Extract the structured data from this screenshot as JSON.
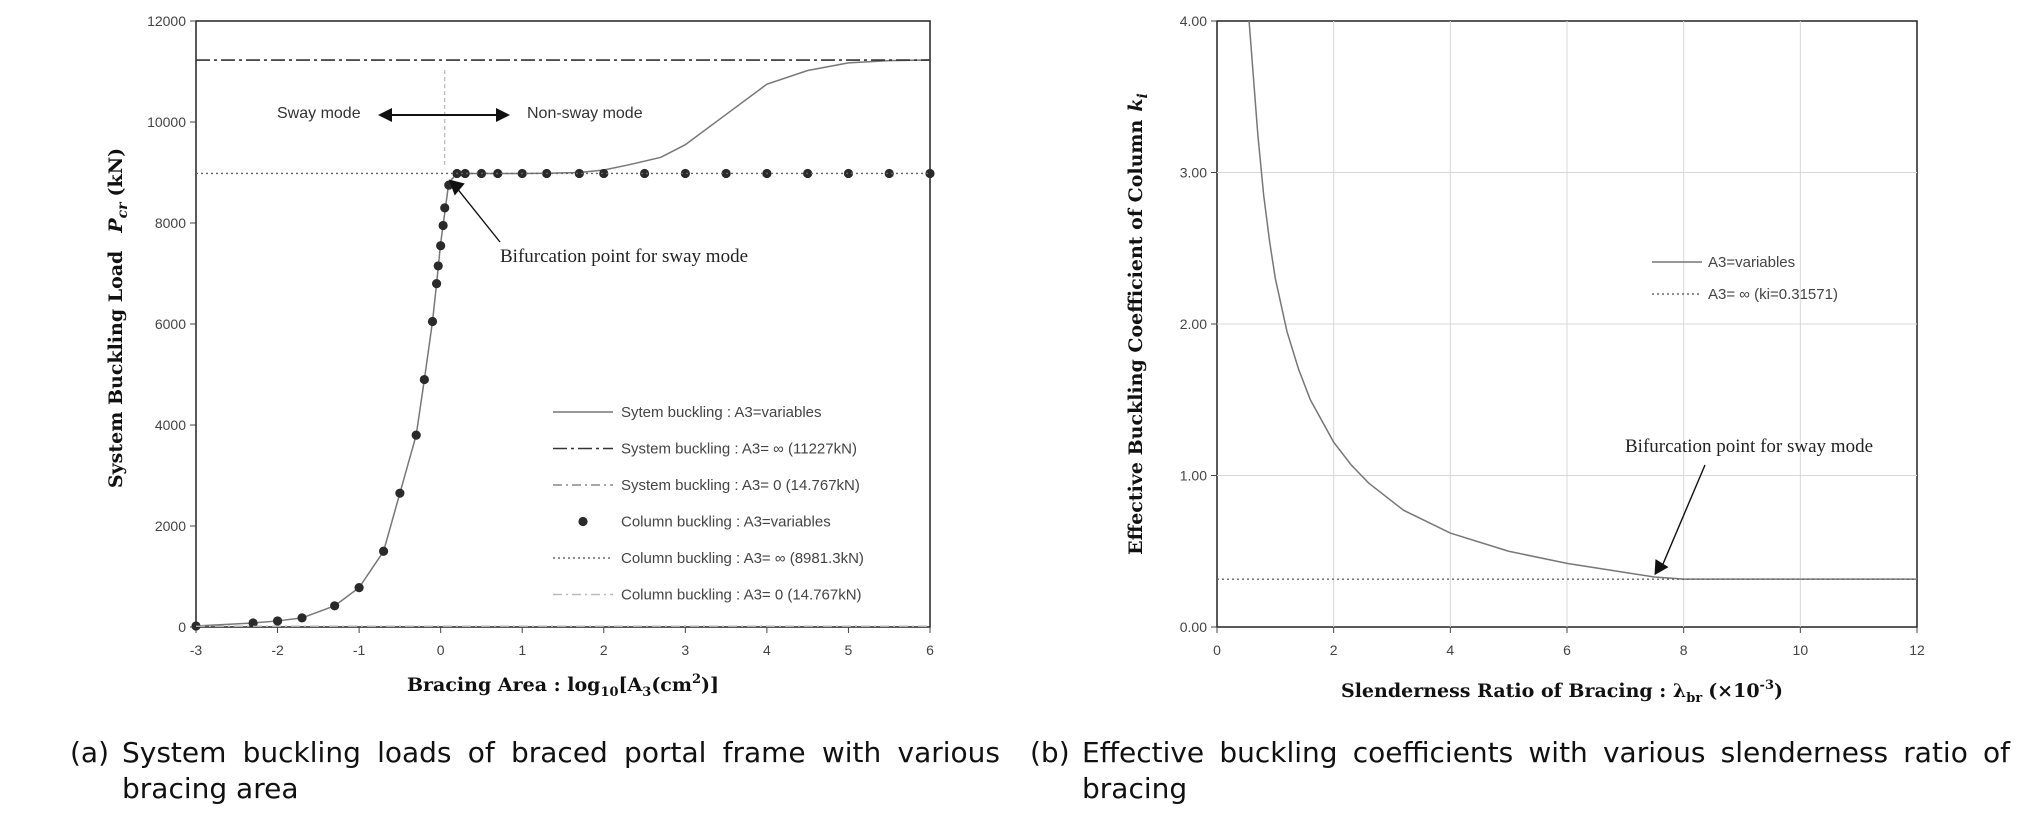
{
  "chart_data": [
    {
      "type": "line",
      "ylabel_main": "System Buckling Load",
      "ylabel_sym": "P",
      "ylabel_sub": "cr",
      "ylabel_unit": "(kN)",
      "xlabel_main": "Bracing Area : log",
      "xlabel_sub": "10",
      "xlabel_mid": "[A",
      "xlabel_sub2": "3",
      "xlabel_unit": "(cm",
      "xlabel_sup": "2",
      "xlabel_end": ")]",
      "xlim": [
        -3,
        6
      ],
      "ylim": [
        0,
        12000
      ],
      "xticks": [
        -3,
        -2,
        -1,
        0,
        1,
        2,
        3,
        4,
        5,
        6
      ],
      "yticks": [
        0,
        2000,
        4000,
        6000,
        8000,
        10000,
        12000
      ],
      "grid": false,
      "legend_position": "lower-right",
      "series": [
        {
          "name": "Sytem buckling : A3=variables",
          "style": "solid",
          "x": [
            -3,
            -2.3,
            -2,
            -1.7,
            -1.3,
            -1,
            -0.7,
            -0.5,
            -0.3,
            -0.2,
            -0.1,
            -0.05,
            0,
            0.05,
            0.1,
            0.2,
            0.3,
            0.5,
            0.7,
            1,
            1.3,
            1.7,
            2,
            2.3,
            2.7,
            3,
            3.5,
            4,
            4.5,
            5,
            5.5,
            6
          ],
          "y": [
            20,
            80,
            120,
            180,
            420,
            780,
            1500,
            2650,
            3800,
            4900,
            6050,
            6800,
            7600,
            8200,
            8800,
            8981,
            8981,
            8981,
            8981,
            8981,
            8985,
            9000,
            9050,
            9150,
            9300,
            9550,
            10150,
            10750,
            11020,
            11170,
            11215,
            11227
          ]
        },
        {
          "name": "System buckling : A3= ∞ (11227kN)",
          "style": "dashdot",
          "y_const": 11227
        },
        {
          "name": "System buckling : A3= 0 (14.767kN)",
          "style": "dashdotlight",
          "y_const": 14.767
        },
        {
          "name": "Column buckling : A3=variables",
          "style": "dots",
          "x": [
            -3,
            -2.3,
            -2,
            -1.7,
            -1.3,
            -1,
            -0.7,
            -0.5,
            -0.3,
            -0.2,
            -0.1,
            -0.05,
            -0.03,
            0,
            0.03,
            0.05,
            0.1,
            0.2,
            0.3,
            0.5,
            0.7,
            1,
            1.3,
            1.7,
            2,
            2.5,
            3,
            3.5,
            4,
            4.5,
            5,
            5.5,
            6
          ],
          "y": [
            20,
            80,
            120,
            180,
            420,
            780,
            1500,
            2650,
            3800,
            4900,
            6050,
            6800,
            7150,
            7550,
            7950,
            8300,
            8750,
            8981,
            8981,
            8981,
            8981,
            8981,
            8981,
            8981,
            8981,
            8981,
            8981,
            8981,
            8981,
            8981,
            8981,
            8981,
            8981
          ]
        },
        {
          "name": "Column buckling : A3= ∞ (8981.3kN)",
          "style": "dotted",
          "y_const": 8981.3
        },
        {
          "name": "Column buckling : A3= 0 (14.767kN)",
          "style": "dashdotfaint",
          "y_const": 14.767
        }
      ],
      "annotations": {
        "sway": "Sway mode",
        "nonsway": "Non-sway mode",
        "bifurcation": "Bifurcation point for sway mode",
        "bifurcation_x": 0.05,
        "bifurcation_y": 8981
      }
    },
    {
      "type": "line",
      "ylabel_main": "Effective Buckling Coefficient of Column",
      "ylabel_sym": "k",
      "ylabel_sub": "i",
      "xlabel_main": "Slenderness Ratio of Bracing : λ",
      "xlabel_sub": "br",
      "xlabel_unit": "(×10",
      "xlabel_sup": "-3",
      "xlabel_end": ")",
      "xlim": [
        0,
        12
      ],
      "ylim": [
        0,
        4
      ],
      "xticks": [
        0,
        2,
        4,
        6,
        8,
        10,
        12
      ],
      "yticks": [
        "0.00",
        "1.00",
        "2.00",
        "3.00",
        "4.00"
      ],
      "grid": true,
      "legend_position": "upper-right",
      "series": [
        {
          "name": "A3=variables",
          "style": "solid",
          "x": [
            0.55,
            0.6,
            0.7,
            0.8,
            0.9,
            1.0,
            1.2,
            1.4,
            1.6,
            2.0,
            2.3,
            2.6,
            3.2,
            4.0,
            5.0,
            6.0,
            7.0,
            7.5,
            8.0,
            9.0,
            10.0,
            11.0,
            12.0
          ],
          "y": [
            4.0,
            3.75,
            3.25,
            2.85,
            2.55,
            2.3,
            1.95,
            1.7,
            1.5,
            1.22,
            1.07,
            0.95,
            0.77,
            0.62,
            0.5,
            0.42,
            0.36,
            0.33,
            0.3157,
            0.3157,
            0.3157,
            0.3157,
            0.3157
          ]
        },
        {
          "name": "A3= ∞ (ki=0.31571)",
          "style": "dotted",
          "y_const": 0.31571
        }
      ],
      "annotations": {
        "bifurcation": "Bifurcation point for sway mode",
        "bifurcation_x": 7.5,
        "bifurcation_y": 0.3157
      }
    }
  ],
  "captions": {
    "a_label": "(a)",
    "a_text": "System buckling loads of braced portal frame with various bracing area",
    "b_label": "(b)",
    "b_text": "Effective buckling coefficients with various slenderness ratio of bracing"
  }
}
